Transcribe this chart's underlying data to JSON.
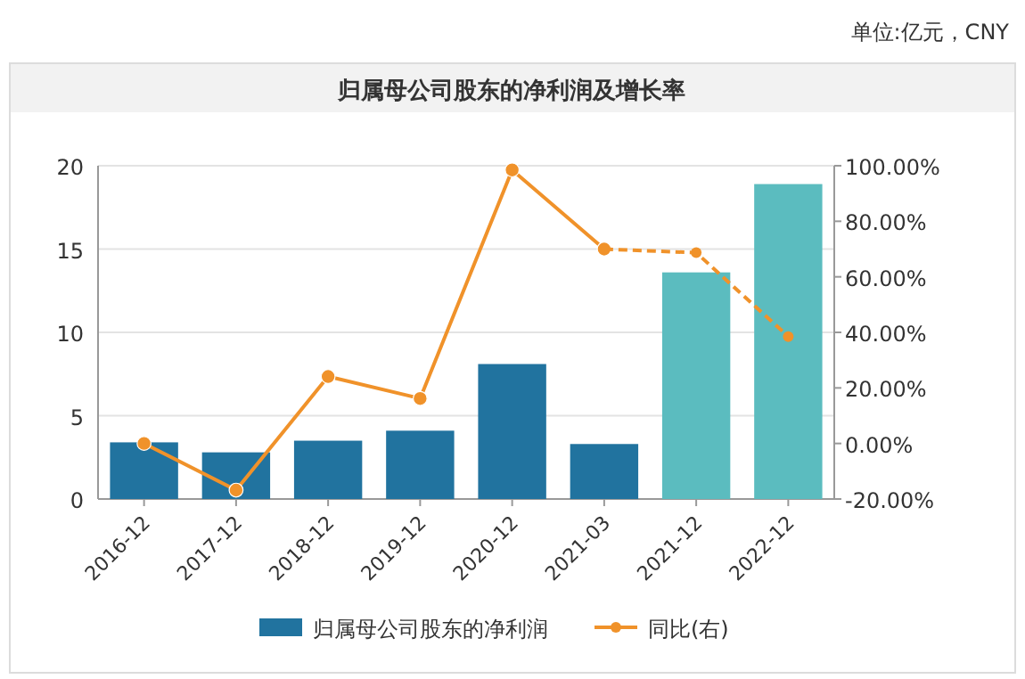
{
  "chart_data": {
    "type": "bar",
    "title": "归属母公司股东的净利润及增长率",
    "annotations": [
      "单位:亿元，CNY"
    ],
    "categories": [
      "2016-12",
      "2017-12",
      "2018-12",
      "2019-12",
      "2020-12",
      "2021-03",
      "2021-12",
      "2022-12"
    ],
    "series": [
      {
        "name": "归属母公司股东的净利润",
        "color": "#21739f",
        "colors": [
          "#21739f",
          "#21739f",
          "#21739f",
          "#21739f",
          "#21739f",
          "#21739f",
          "#5bbcbf",
          "#5bbcbf"
        ],
        "values": [
          3.4,
          2.8,
          3.5,
          4.1,
          8.1,
          3.3,
          13.6,
          18.9
        ]
      },
      {
        "name": "同比(右)",
        "type": "line",
        "axis": "y2",
        "color": "#f0922a",
        "marker": "circle",
        "line_style": "solid",
        "values": [
          0,
          -16.8,
          24.1,
          16.2,
          98.5,
          70,
          null,
          null
        ]
      },
      {
        "type": "line",
        "axis": "y2",
        "color": "#f0922a",
        "marker": "circle",
        "line_style": "dashed",
        "values": [
          null,
          null,
          null,
          null,
          null,
          70,
          68.7,
          38.5
        ]
      }
    ],
    "ylim": [
      0,
      20
    ],
    "yticks": [
      0,
      5,
      10,
      15,
      20
    ],
    "y2lim": [
      -20,
      100
    ],
    "y2ticks": [
      {
        "value": -20,
        "label": "-20.00%"
      },
      {
        "value": 0,
        "label": "0.00%"
      },
      {
        "value": 20,
        "label": "20.00%"
      },
      {
        "value": 40,
        "label": "40.00%"
      },
      {
        "value": 60,
        "label": "60.00%"
      },
      {
        "value": 80,
        "label": "80.00%"
      },
      {
        "value": 100,
        "label": "100.00%"
      }
    ],
    "grid": "y",
    "legend": "bottom"
  }
}
